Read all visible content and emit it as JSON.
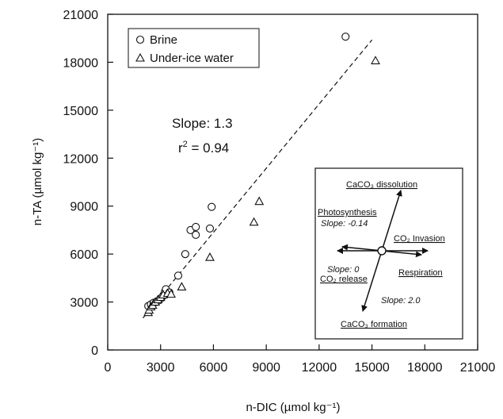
{
  "chart_data": {
    "type": "scatter",
    "xlabel": "n-DIC (µmol kg⁻¹)",
    "ylabel": "n-TA (µmol kg⁻¹)",
    "xlim": [
      0,
      21000
    ],
    "ylim": [
      0,
      21000
    ],
    "xticks": [
      "0",
      "3000",
      "6000",
      "9000",
      "12000",
      "15000",
      "18000",
      "21000"
    ],
    "yticks": [
      "0",
      "3000",
      "6000",
      "9000",
      "12000",
      "15000",
      "18000",
      "21000"
    ],
    "grid": false,
    "legend_position": "top-left",
    "series": [
      {
        "name": "Brine",
        "marker": "circle",
        "points": [
          [
            2300,
            2750
          ],
          [
            2450,
            2850
          ],
          [
            2600,
            2950
          ],
          [
            2750,
            3000
          ],
          [
            2900,
            3100
          ],
          [
            3050,
            3250
          ],
          [
            3150,
            3400
          ],
          [
            3250,
            3650
          ],
          [
            3300,
            3800
          ],
          [
            3500,
            3600
          ],
          [
            4000,
            4650
          ],
          [
            4400,
            6000
          ],
          [
            4700,
            7500
          ],
          [
            5000,
            7700
          ],
          [
            5000,
            7200
          ],
          [
            5800,
            7600
          ],
          [
            5900,
            8950
          ],
          [
            13500,
            19600
          ]
        ]
      },
      {
        "name": "Under-ice water",
        "marker": "triangle",
        "points": [
          [
            2300,
            2350
          ],
          [
            2350,
            2500
          ],
          [
            2450,
            2700
          ],
          [
            2550,
            2800
          ],
          [
            2700,
            3000
          ],
          [
            2850,
            3150
          ],
          [
            3000,
            3300
          ],
          [
            3150,
            3450
          ],
          [
            3400,
            3550
          ],
          [
            3600,
            3500
          ],
          [
            4200,
            3950
          ],
          [
            5800,
            5800
          ],
          [
            8300,
            8000
          ],
          [
            8600,
            9300
          ],
          [
            15200,
            18100
          ]
        ]
      }
    ],
    "fit_line": {
      "x": [
        2000,
        15000
      ],
      "y": [
        2000,
        19400
      ],
      "style": "dashed"
    },
    "annotations": {
      "slope": "Slope: 1.3",
      "r2_prefix": "r",
      "r2_sup": "2",
      "r2_suffix": " = 0.94"
    },
    "inset": {
      "labels": {
        "dissolution": "CaCO₃ dissolution",
        "photosynthesis": "Photosynthesis",
        "photosynthesis_slope": "Slope: -0.14",
        "invasion": "CO₂ Invasion",
        "release_slope": "Slope: 0",
        "release": "CO₂ release",
        "respiration": "Respiration",
        "formation_slope": "Slope: 2.0",
        "formation": "CaCO₃ formation"
      }
    }
  },
  "colors": {
    "ink": "#111111",
    "background": "#ffffff"
  }
}
